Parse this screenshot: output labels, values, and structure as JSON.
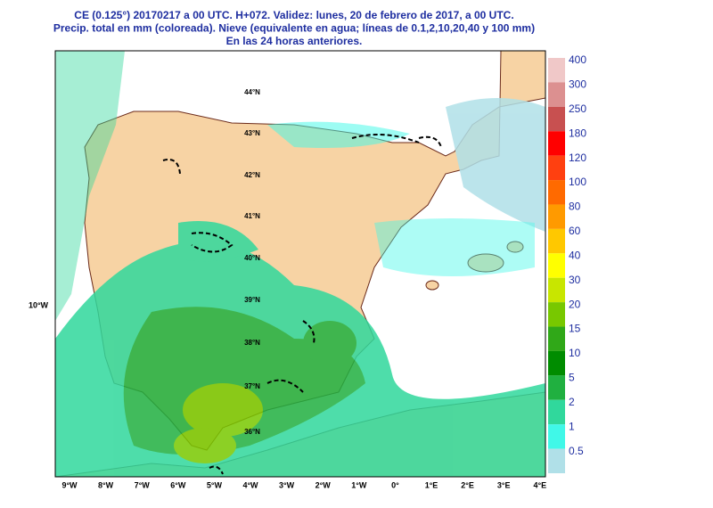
{
  "header": {
    "lines": [
      "CE (0.125°) 20170217 a 00 UTC.  H+072. Validez: lunes, 20 de febrero de 2017,  a  00 UTC.",
      "Precip. total en mm (coloreada). Nieve (equivalente en agua; líneas de 0.1,2,10,20,40 y 100 mm)",
      "En las 24 horas anteriores."
    ]
  },
  "map": {
    "longitude_labels": [
      "9°W",
      "8°W",
      "7°W",
      "6°W",
      "5°W",
      "4°W",
      "3°W",
      "2°W",
      "1°W",
      "0°",
      "1°E",
      "2°E",
      "3°E",
      "4°E"
    ],
    "latitude_labels": [
      "44°N",
      "43°N",
      "42°N",
      "41°N",
      "40°N",
      "39°N",
      "38°N",
      "37°N",
      "36°N"
    ],
    "side_label": "10°W"
  },
  "colorbar": {
    "levels": [
      {
        "label": "400",
        "color": "#f0c8c8"
      },
      {
        "label": "300",
        "color": "#dc9090"
      },
      {
        "label": "250",
        "color": "#c85050"
      },
      {
        "label": "180",
        "color": "#ff0000"
      },
      {
        "label": "120",
        "color": "#ff4010"
      },
      {
        "label": "100",
        "color": "#ff6a00"
      },
      {
        "label": "80",
        "color": "#ff9a00"
      },
      {
        "label": "60",
        "color": "#ffc800"
      },
      {
        "label": "40",
        "color": "#ffff00"
      },
      {
        "label": "30",
        "color": "#c8e600"
      },
      {
        "label": "20",
        "color": "#78c800"
      },
      {
        "label": "15",
        "color": "#30a818"
      },
      {
        "label": "10",
        "color": "#008c00"
      },
      {
        "label": "5",
        "color": "#20b040"
      },
      {
        "label": "2",
        "color": "#30d89c"
      },
      {
        "label": "1",
        "color": "#40f8e8"
      },
      {
        "label": "0.5",
        "color": "#b0e0e8"
      }
    ]
  }
}
